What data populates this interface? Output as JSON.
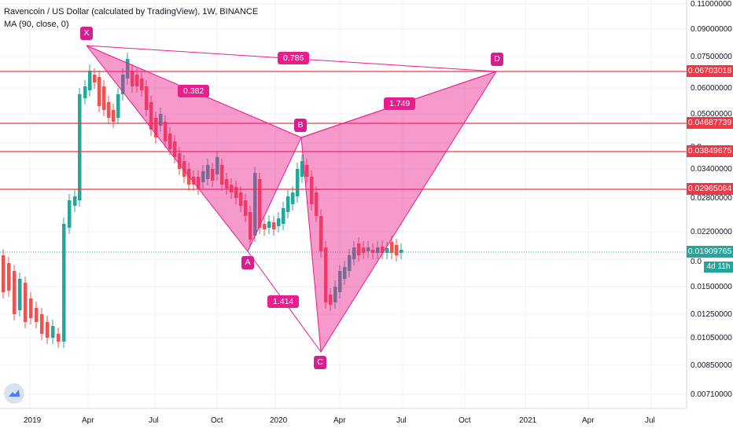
{
  "legend": {
    "title": "Ravencoin / US Dollar (calculated by TradingView), 1W, BINANCE",
    "indicator": "MA (90, close, 0)"
  },
  "y_axis": {
    "ticks": [
      "0.11000000",
      "0.09000000",
      "0.07500000",
      "0.06000000",
      "0.05000000",
      "0.03400000",
      "0.02800000",
      "0.02200000",
      "0.01500000",
      "0.01250000",
      "0.01050000",
      "0.00850000",
      "0.00710000"
    ],
    "partial_ticks": [
      "0.0",
      "0.0"
    ]
  },
  "x_axis": {
    "ticks": [
      "2019",
      "Apr",
      "Jul",
      "Oct",
      "2020",
      "Apr",
      "Jul",
      "Oct",
      "2021",
      "Apr",
      "Jul"
    ]
  },
  "price_lines": [
    {
      "value": "0.06703018",
      "color": "#f23645"
    },
    {
      "value": "0.04687739",
      "color": "#f23645"
    },
    {
      "value": "0.03849675",
      "color": "#f23645"
    },
    {
      "value": "0.02965064",
      "color": "#f23645"
    },
    {
      "value": "0.01909765",
      "color": "#26a69a"
    }
  ],
  "countdown": "4d 11h",
  "pattern": {
    "points": [
      "X",
      "A",
      "B",
      "C",
      "D"
    ],
    "ratios": [
      "0.786",
      "0.382",
      "1.749",
      "1.414"
    ],
    "color": "#e91e8c"
  },
  "colors": {
    "up": "#26a69a",
    "down": "#ef5350",
    "grid": "#f0f3fa"
  },
  "chart_data": {
    "type": "candlestick",
    "title": "Ravencoin / US Dollar (calculated by TradingView), 1W, BINANCE",
    "symbol": "RVN/USD",
    "interval": "1W",
    "price_range": [
      0.0068,
      0.11
    ],
    "scale": "log",
    "current_price": 0.01909765,
    "horizontal_levels": [
      0.06703018,
      0.04687739,
      0.03849675,
      0.02965064
    ],
    "harmonic_pattern": {
      "X": {
        "date": "2019-04",
        "price": 0.082
      },
      "A": {
        "date": "2019-11",
        "price": 0.0205
      },
      "B": {
        "date": "2020-01",
        "price": 0.0435
      },
      "C": {
        "date": "2020-03",
        "price": 0.0105
      },
      "D": {
        "date": "2020-11",
        "price": 0.067
      },
      "ratios": {
        "XA_B": 0.382,
        "XA_D": 0.786,
        "BC_D": 1.749,
        "AB_C": 1.414
      }
    }
  }
}
